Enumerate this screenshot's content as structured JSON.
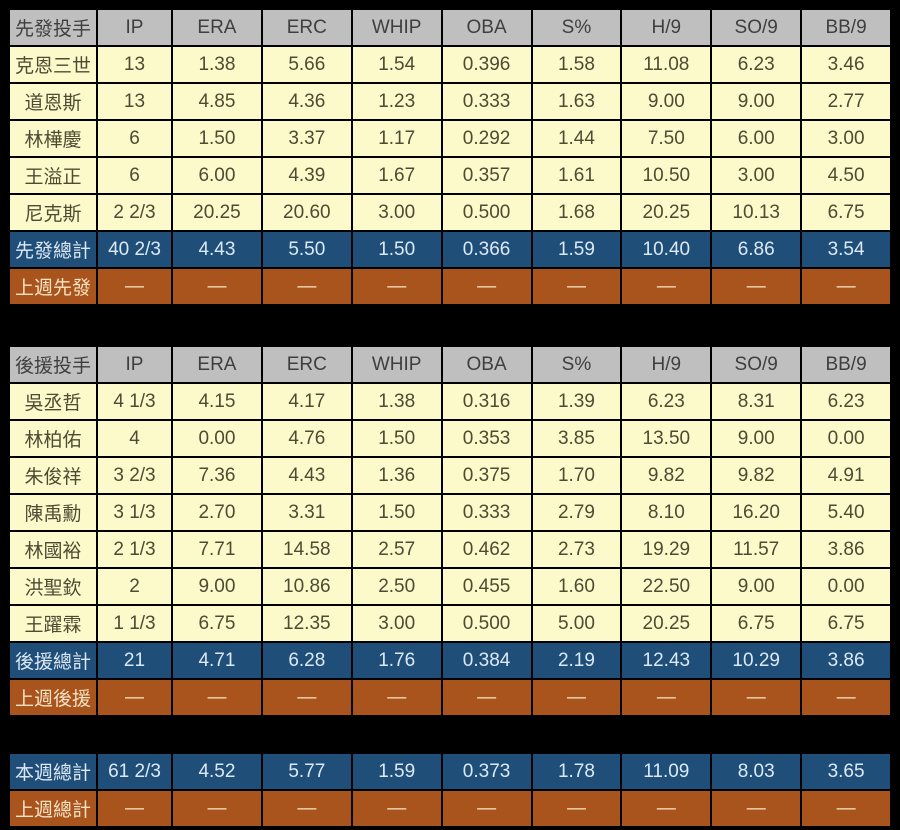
{
  "colors": {
    "page_bg": "#000000",
    "header_bg": "#BFBFBF",
    "header_text": "#3F3F3F",
    "row_bg": "#FCF9CB",
    "row_text": "#4E4B33",
    "total_bg": "#1F4E79",
    "total_text": "#DCE9F5",
    "lastweek_bg": "#A9541C",
    "lastweek_text": "#F6E3C5"
  },
  "chart_data": [
    {
      "type": "table",
      "title": "先發投手",
      "columns": [
        "IP",
        "ERA",
        "ERC",
        "WHIP",
        "OBA",
        "S%",
        "H/9",
        "SO/9",
        "BB/9"
      ],
      "rows": [
        {
          "name": "克恩三世",
          "values": [
            "13",
            "1.38",
            "5.66",
            "1.54",
            "0.396",
            "1.58",
            "11.08",
            "6.23",
            "3.46"
          ]
        },
        {
          "name": "道恩斯",
          "values": [
            "13",
            "4.85",
            "4.36",
            "1.23",
            "0.333",
            "1.63",
            "9.00",
            "9.00",
            "2.77"
          ]
        },
        {
          "name": "林樺慶",
          "values": [
            "6",
            "1.50",
            "3.37",
            "1.17",
            "0.292",
            "1.44",
            "7.50",
            "6.00",
            "3.00"
          ]
        },
        {
          "name": "王溢正",
          "values": [
            "6",
            "6.00",
            "4.39",
            "1.67",
            "0.357",
            "1.61",
            "10.50",
            "3.00",
            "4.50"
          ]
        },
        {
          "name": "尼克斯",
          "values": [
            "2 2/3",
            "20.25",
            "20.60",
            "3.00",
            "0.500",
            "1.68",
            "20.25",
            "10.13",
            "6.75"
          ]
        }
      ],
      "total": {
        "name": "先發總計",
        "values": [
          "40 2/3",
          "4.43",
          "5.50",
          "1.50",
          "0.366",
          "1.59",
          "10.40",
          "6.86",
          "3.54"
        ]
      },
      "last_week": {
        "name": "上週先發",
        "values": [
          "—",
          "—",
          "—",
          "—",
          "—",
          "—",
          "—",
          "—",
          "—"
        ]
      }
    },
    {
      "type": "table",
      "title": "後援投手",
      "columns": [
        "IP",
        "ERA",
        "ERC",
        "WHIP",
        "OBA",
        "S%",
        "H/9",
        "SO/9",
        "BB/9"
      ],
      "rows": [
        {
          "name": "吳丞哲",
          "values": [
            "4 1/3",
            "4.15",
            "4.17",
            "1.38",
            "0.316",
            "1.39",
            "6.23",
            "8.31",
            "6.23"
          ]
        },
        {
          "name": "林柏佑",
          "values": [
            "4",
            "0.00",
            "4.76",
            "1.50",
            "0.353",
            "3.85",
            "13.50",
            "9.00",
            "0.00"
          ]
        },
        {
          "name": "朱俊祥",
          "values": [
            "3 2/3",
            "7.36",
            "4.43",
            "1.36",
            "0.375",
            "1.70",
            "9.82",
            "9.82",
            "4.91"
          ]
        },
        {
          "name": "陳禹勳",
          "values": [
            "3 1/3",
            "2.70",
            "3.31",
            "1.50",
            "0.333",
            "2.79",
            "8.10",
            "16.20",
            "5.40"
          ]
        },
        {
          "name": "林國裕",
          "values": [
            "2 1/3",
            "7.71",
            "14.58",
            "2.57",
            "0.462",
            "2.73",
            "19.29",
            "11.57",
            "3.86"
          ]
        },
        {
          "name": "洪聖欽",
          "values": [
            "2",
            "9.00",
            "10.86",
            "2.50",
            "0.455",
            "1.60",
            "22.50",
            "9.00",
            "0.00"
          ]
        },
        {
          "name": "王躍霖",
          "values": [
            "1 1/3",
            "6.75",
            "12.35",
            "3.00",
            "0.500",
            "5.00",
            "20.25",
            "6.75",
            "6.75"
          ]
        }
      ],
      "total": {
        "name": "後援總計",
        "values": [
          "21",
          "4.71",
          "6.28",
          "1.76",
          "0.384",
          "2.19",
          "12.43",
          "10.29",
          "3.86"
        ]
      },
      "last_week": {
        "name": "上週後援",
        "values": [
          "—",
          "—",
          "—",
          "—",
          "—",
          "—",
          "—",
          "—",
          "—"
        ]
      }
    },
    {
      "type": "table",
      "title": "",
      "columns": [],
      "rows": [],
      "total": {
        "name": "本週總計",
        "values": [
          "61 2/3",
          "4.52",
          "5.77",
          "1.59",
          "0.373",
          "1.78",
          "11.09",
          "8.03",
          "3.65"
        ]
      },
      "last_week": {
        "name": "上週總計",
        "values": [
          "—",
          "—",
          "—",
          "—",
          "—",
          "—",
          "—",
          "—",
          "—"
        ]
      }
    }
  ]
}
